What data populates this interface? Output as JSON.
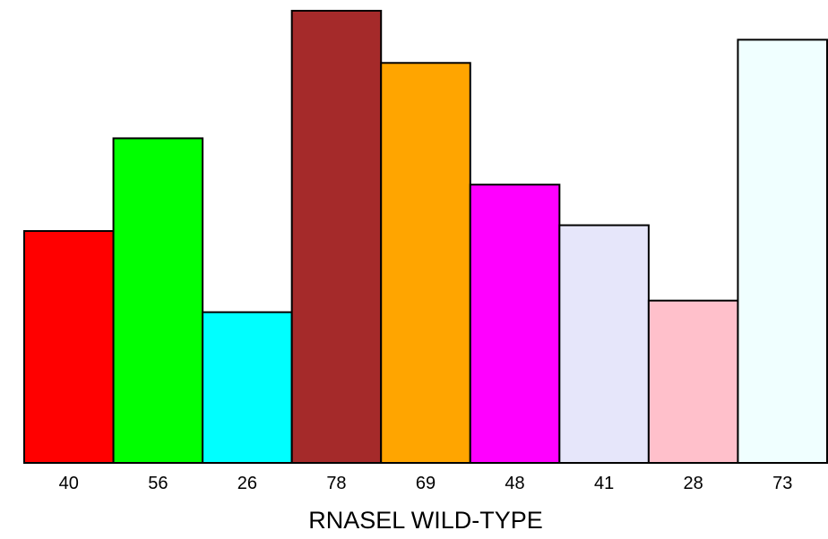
{
  "chart_data": {
    "type": "bar",
    "title": "",
    "xlabel": "RNASEL WILD-TYPE",
    "ylabel": "",
    "categories": [
      "40",
      "56",
      "26",
      "78",
      "69",
      "48",
      "41",
      "28",
      "73"
    ],
    "values": [
      40,
      56,
      26,
      78,
      69,
      48,
      41,
      28,
      73
    ],
    "colors": [
      "#ff0000",
      "#00ff00",
      "#00ffff",
      "#a52a2a",
      "#ffa500",
      "#ff00ff",
      "#e6e6fa",
      "#ffc0cb",
      "#f0ffff"
    ],
    "ylim": [
      0,
      78
    ],
    "grid": false,
    "legend": "none"
  }
}
